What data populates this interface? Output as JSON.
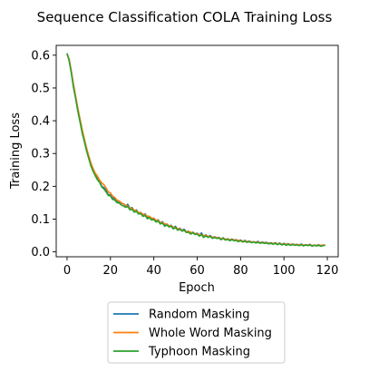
{
  "chart_data": {
    "type": "line",
    "title": "Sequence Classification COLA Training Loss",
    "xlabel": "Epoch",
    "ylabel": "Training Loss",
    "xlim": [
      -5,
      125
    ],
    "ylim": [
      -0.015,
      0.63
    ],
    "xticks": [
      0,
      20,
      40,
      60,
      80,
      100,
      120
    ],
    "yticks": [
      0.0,
      0.1,
      0.2,
      0.3,
      0.4,
      0.5,
      0.6
    ],
    "xtick_labels": [
      "0",
      "20",
      "40",
      "60",
      "80",
      "100",
      "120"
    ],
    "ytick_labels": [
      "0.0",
      "0.1",
      "0.2",
      "0.3",
      "0.4",
      "0.5",
      "0.6"
    ],
    "grid": false,
    "legend_position": "below",
    "series": [
      {
        "name": "Random Masking",
        "color": "#1f77b4",
        "x": [
          0,
          1,
          2,
          3,
          4,
          5,
          6,
          7,
          8,
          9,
          10,
          11,
          12,
          13,
          14,
          15,
          16,
          17,
          18,
          19,
          20,
          21,
          22,
          23,
          24,
          25,
          26,
          27,
          28,
          29,
          30,
          31,
          32,
          33,
          34,
          35,
          36,
          37,
          38,
          39,
          40,
          41,
          42,
          43,
          44,
          45,
          46,
          47,
          48,
          49,
          50,
          51,
          52,
          53,
          54,
          55,
          56,
          57,
          58,
          59,
          60,
          61,
          62,
          63,
          64,
          65,
          66,
          67,
          68,
          69,
          70,
          71,
          72,
          73,
          74,
          75,
          76,
          77,
          78,
          79,
          80,
          81,
          82,
          83,
          84,
          85,
          86,
          87,
          88,
          89,
          90,
          91,
          92,
          93,
          94,
          95,
          96,
          97,
          98,
          99,
          100,
          101,
          102,
          103,
          104,
          105,
          106,
          107,
          108,
          109,
          110,
          111,
          112,
          113,
          114,
          115,
          116,
          117,
          118,
          119
        ],
        "y": [
          0.605,
          0.585,
          0.548,
          0.505,
          0.47,
          0.432,
          0.4,
          0.366,
          0.339,
          0.311,
          0.287,
          0.266,
          0.248,
          0.236,
          0.226,
          0.215,
          0.2,
          0.196,
          0.188,
          0.174,
          0.175,
          0.164,
          0.162,
          0.155,
          0.153,
          0.148,
          0.147,
          0.14,
          0.145,
          0.133,
          0.135,
          0.124,
          0.128,
          0.119,
          0.12,
          0.113,
          0.116,
          0.105,
          0.108,
          0.1,
          0.103,
          0.094,
          0.098,
          0.088,
          0.092,
          0.08,
          0.085,
          0.079,
          0.081,
          0.073,
          0.078,
          0.068,
          0.072,
          0.066,
          0.069,
          0.061,
          0.063,
          0.055,
          0.06,
          0.055,
          0.057,
          0.05,
          0.058,
          0.045,
          0.052,
          0.046,
          0.05,
          0.042,
          0.046,
          0.043,
          0.044,
          0.039,
          0.043,
          0.037,
          0.04,
          0.036,
          0.039,
          0.036,
          0.037,
          0.033,
          0.036,
          0.032,
          0.035,
          0.031,
          0.033,
          0.029,
          0.031,
          0.029,
          0.032,
          0.027,
          0.03,
          0.028,
          0.029,
          0.026,
          0.028,
          0.025,
          0.028,
          0.024,
          0.027,
          0.023,
          0.026,
          0.022,
          0.025,
          0.021,
          0.024,
          0.022,
          0.023,
          0.02,
          0.024,
          0.019,
          0.022,
          0.02,
          0.023,
          0.018,
          0.021,
          0.019,
          0.022,
          0.018,
          0.02,
          0.021
        ]
      },
      {
        "name": "Whole Word Masking",
        "color": "#ff7f0e",
        "x": [
          0,
          1,
          2,
          3,
          4,
          5,
          6,
          7,
          8,
          9,
          10,
          11,
          12,
          13,
          14,
          15,
          16,
          17,
          18,
          19,
          20,
          21,
          22,
          23,
          24,
          25,
          26,
          27,
          28,
          29,
          30,
          31,
          32,
          33,
          34,
          35,
          36,
          37,
          38,
          39,
          40,
          41,
          42,
          43,
          44,
          45,
          46,
          47,
          48,
          49,
          50,
          51,
          52,
          53,
          54,
          55,
          56,
          57,
          58,
          59,
          60,
          61,
          62,
          63,
          64,
          65,
          66,
          67,
          68,
          69,
          70,
          71,
          72,
          73,
          74,
          75,
          76,
          77,
          78,
          79,
          80,
          81,
          82,
          83,
          84,
          85,
          86,
          87,
          88,
          89,
          90,
          91,
          92,
          93,
          94,
          95,
          96,
          97,
          98,
          99,
          100,
          101,
          102,
          103,
          104,
          105,
          106,
          107,
          108,
          109,
          110,
          111,
          112,
          113,
          114,
          115,
          116,
          117,
          118,
          119
        ],
        "y": [
          0.604,
          0.587,
          0.55,
          0.51,
          0.474,
          0.437,
          0.405,
          0.372,
          0.344,
          0.317,
          0.293,
          0.271,
          0.254,
          0.24,
          0.231,
          0.219,
          0.21,
          0.205,
          0.195,
          0.183,
          0.18,
          0.17,
          0.166,
          0.158,
          0.155,
          0.15,
          0.146,
          0.142,
          0.139,
          0.134,
          0.132,
          0.127,
          0.125,
          0.12,
          0.119,
          0.115,
          0.113,
          0.109,
          0.108,
          0.103,
          0.102,
          0.097,
          0.096,
          0.09,
          0.089,
          0.086,
          0.084,
          0.08,
          0.079,
          0.076,
          0.074,
          0.071,
          0.07,
          0.067,
          0.065,
          0.062,
          0.062,
          0.06,
          0.058,
          0.056,
          0.055,
          0.053,
          0.052,
          0.05,
          0.05,
          0.048,
          0.047,
          0.045,
          0.045,
          0.043,
          0.043,
          0.041,
          0.041,
          0.039,
          0.039,
          0.038,
          0.037,
          0.036,
          0.036,
          0.035,
          0.034,
          0.033,
          0.033,
          0.032,
          0.031,
          0.031,
          0.03,
          0.03,
          0.029,
          0.029,
          0.028,
          0.028,
          0.027,
          0.027,
          0.026,
          0.026,
          0.026,
          0.025,
          0.025,
          0.024,
          0.024,
          0.024,
          0.023,
          0.023,
          0.023,
          0.022,
          0.022,
          0.022,
          0.022,
          0.021,
          0.021,
          0.021,
          0.021,
          0.02,
          0.02,
          0.02,
          0.02,
          0.02,
          0.021,
          0.02
        ]
      },
      {
        "name": "Typhoon Masking",
        "color": "#2ca02c",
        "x": [
          0,
          1,
          2,
          3,
          4,
          5,
          6,
          7,
          8,
          9,
          10,
          11,
          12,
          13,
          14,
          15,
          16,
          17,
          18,
          19,
          20,
          21,
          22,
          23,
          24,
          25,
          26,
          27,
          28,
          29,
          30,
          31,
          32,
          33,
          34,
          35,
          36,
          37,
          38,
          39,
          40,
          41,
          42,
          43,
          44,
          45,
          46,
          47,
          48,
          49,
          50,
          51,
          52,
          53,
          54,
          55,
          56,
          57,
          58,
          59,
          60,
          61,
          62,
          63,
          64,
          65,
          66,
          67,
          68,
          69,
          70,
          71,
          72,
          73,
          74,
          75,
          76,
          77,
          78,
          79,
          80,
          81,
          82,
          83,
          84,
          85,
          86,
          87,
          88,
          89,
          90,
          91,
          92,
          93,
          94,
          95,
          96,
          97,
          98,
          99,
          100,
          101,
          102,
          103,
          104,
          105,
          106,
          107,
          108,
          109,
          110,
          111,
          112,
          113,
          114,
          115,
          116,
          117,
          118,
          119
        ],
        "y": [
          0.606,
          0.582,
          0.544,
          0.5,
          0.466,
          0.428,
          0.396,
          0.362,
          0.336,
          0.308,
          0.285,
          0.262,
          0.246,
          0.232,
          0.22,
          0.212,
          0.198,
          0.192,
          0.183,
          0.172,
          0.171,
          0.16,
          0.158,
          0.15,
          0.149,
          0.143,
          0.14,
          0.136,
          0.138,
          0.128,
          0.13,
          0.121,
          0.123,
          0.115,
          0.117,
          0.108,
          0.111,
          0.101,
          0.104,
          0.097,
          0.099,
          0.091,
          0.094,
          0.085,
          0.088,
          0.078,
          0.082,
          0.076,
          0.078,
          0.07,
          0.074,
          0.066,
          0.069,
          0.063,
          0.066,
          0.059,
          0.06,
          0.054,
          0.058,
          0.053,
          0.054,
          0.048,
          0.052,
          0.044,
          0.049,
          0.044,
          0.047,
          0.041,
          0.044,
          0.041,
          0.042,
          0.037,
          0.041,
          0.036,
          0.038,
          0.034,
          0.037,
          0.034,
          0.035,
          0.031,
          0.034,
          0.03,
          0.032,
          0.029,
          0.031,
          0.028,
          0.03,
          0.027,
          0.029,
          0.026,
          0.028,
          0.026,
          0.027,
          0.024,
          0.026,
          0.023,
          0.026,
          0.022,
          0.025,
          0.021,
          0.024,
          0.02,
          0.023,
          0.02,
          0.022,
          0.02,
          0.021,
          0.019,
          0.022,
          0.018,
          0.021,
          0.019,
          0.021,
          0.017,
          0.02,
          0.018,
          0.02,
          0.017,
          0.019,
          0.02
        ]
      }
    ]
  }
}
